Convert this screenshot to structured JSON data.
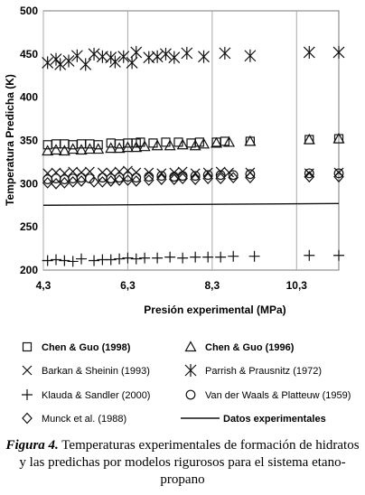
{
  "chart_data": {
    "type": "scatter",
    "xlabel": "Presión experimental (MPa)",
    "ylabel": "Temperatura Predicha (K)",
    "xlim": [
      4.3,
      11.3
    ],
    "ylim": [
      200,
      500
    ],
    "xticks": [
      {
        "value": 4.3,
        "label": "4,3"
      },
      {
        "value": 6.3,
        "label": "6,3"
      },
      {
        "value": 8.3,
        "label": "8,3"
      },
      {
        "value": 10.3,
        "label": "10,3"
      }
    ],
    "yticks": [
      {
        "value": 200,
        "label": "200"
      },
      {
        "value": 250,
        "label": "250"
      },
      {
        "value": 300,
        "label": "300"
      },
      {
        "value": 350,
        "label": "350"
      },
      {
        "value": 400,
        "label": "400"
      },
      {
        "value": 450,
        "label": "450"
      },
      {
        "value": 500,
        "label": "500"
      }
    ],
    "grid": "vertical",
    "series": [
      {
        "name": "Chen & Guo (1998)",
        "marker": "square",
        "x": [
          4.4,
          4.6,
          4.8,
          5.0,
          5.2,
          5.4,
          5.6,
          5.9,
          6.1,
          6.3,
          6.5,
          6.6,
          6.9,
          7.2,
          7.5,
          7.8,
          8.0,
          8.4,
          8.6,
          9.2,
          10.6,
          11.3
        ],
        "y": [
          345,
          346,
          346,
          345,
          346,
          346,
          345,
          347,
          346,
          347,
          347,
          348,
          347,
          348,
          348,
          347,
          348,
          348,
          349,
          349,
          351,
          352
        ]
      },
      {
        "name": "Chen & Guo (1996)",
        "marker": "triangle",
        "x": [
          4.4,
          4.6,
          4.8,
          5.0,
          5.2,
          5.4,
          5.6,
          5.9,
          6.1,
          6.3,
          6.5,
          6.7,
          7.0,
          7.3,
          7.6,
          7.9,
          8.1,
          8.4,
          8.7,
          9.2,
          10.6,
          11.3
        ],
        "y": [
          338,
          339,
          338,
          340,
          339,
          340,
          340,
          341,
          341,
          342,
          342,
          343,
          344,
          344,
          345,
          344,
          346,
          347,
          348,
          349,
          351,
          352
        ]
      },
      {
        "name": "Barkan & Sheinin (1993)",
        "marker": "x",
        "x": [
          4.4,
          4.6,
          4.8,
          5.0,
          5.2,
          5.4,
          5.7,
          5.9,
          6.1,
          6.3,
          6.5,
          6.8,
          7.1,
          7.4,
          7.6,
          7.9,
          8.2,
          8.5,
          8.7,
          9.2,
          10.6,
          11.3
        ],
        "y": [
          312,
          313,
          312,
          314,
          313,
          314,
          313,
          313,
          314,
          315,
          313,
          313,
          312,
          313,
          314,
          312,
          313,
          314,
          313,
          313,
          312,
          313
        ]
      },
      {
        "name": "Parrish & Prausnitz (1972)",
        "marker": "asterisk",
        "x": [
          4.4,
          4.6,
          4.7,
          4.9,
          5.1,
          5.3,
          5.5,
          5.7,
          5.9,
          6.0,
          6.2,
          6.4,
          6.5,
          6.8,
          7.0,
          7.2,
          7.4,
          7.7,
          8.1,
          8.6,
          9.2,
          10.6,
          11.3
        ],
        "y": [
          440,
          444,
          438,
          442,
          448,
          438,
          450,
          447,
          446,
          441,
          447,
          440,
          452,
          446,
          447,
          450,
          446,
          451,
          447,
          451,
          448,
          452,
          452
        ]
      },
      {
        "name": "Klauda & Sandler (2000)",
        "marker": "plus",
        "x": [
          4.4,
          4.6,
          4.8,
          5.0,
          5.2,
          5.5,
          5.7,
          5.9,
          6.1,
          6.3,
          6.5,
          6.7,
          7.0,
          7.3,
          7.6,
          7.9,
          8.2,
          8.5,
          8.8,
          9.3,
          10.6,
          11.3
        ],
        "y": [
          211,
          212,
          211,
          210,
          213,
          211,
          212,
          212,
          213,
          214,
          213,
          214,
          214,
          215,
          214,
          215,
          215,
          215,
          216,
          216,
          217,
          217
        ]
      },
      {
        "name": "Van der Waals  & Platteuw (1959)",
        "marker": "circle",
        "x": [
          4.4,
          4.6,
          4.8,
          5.0,
          5.2,
          5.4,
          5.7,
          5.9,
          6.1,
          6.3,
          6.5,
          6.8,
          7.1,
          7.4,
          7.6,
          7.9,
          8.2,
          8.5,
          8.8,
          9.2,
          10.6,
          11.3
        ],
        "y": [
          305,
          306,
          305,
          306,
          307,
          306,
          307,
          306,
          307,
          308,
          307,
          308,
          309,
          308,
          309,
          309,
          310,
          310,
          310,
          311,
          312,
          312
        ]
      },
      {
        "name": "Munck et al. (1988)",
        "marker": "diamond",
        "x": [
          4.4,
          4.6,
          4.8,
          5.0,
          5.2,
          5.5,
          5.7,
          5.9,
          6.1,
          6.3,
          6.5,
          6.8,
          7.1,
          7.4,
          7.6,
          7.9,
          8.2,
          8.5,
          8.8,
          9.2,
          10.6,
          11.3
        ],
        "y": [
          301,
          300,
          301,
          302,
          303,
          302,
          302,
          303,
          304,
          304,
          303,
          304,
          305,
          305,
          306,
          305,
          306,
          306,
          307,
          307,
          308,
          308
        ]
      },
      {
        "name": "Datos experimentales",
        "marker": "line",
        "x": [
          4.3,
          11.3
        ],
        "y": [
          275,
          277
        ]
      }
    ]
  },
  "caption": {
    "label": "Figura 4.",
    "text": "Temperaturas experimentales de formación de hidratos y las predichas por modelos rigurosos para el sistema etano-propano"
  }
}
